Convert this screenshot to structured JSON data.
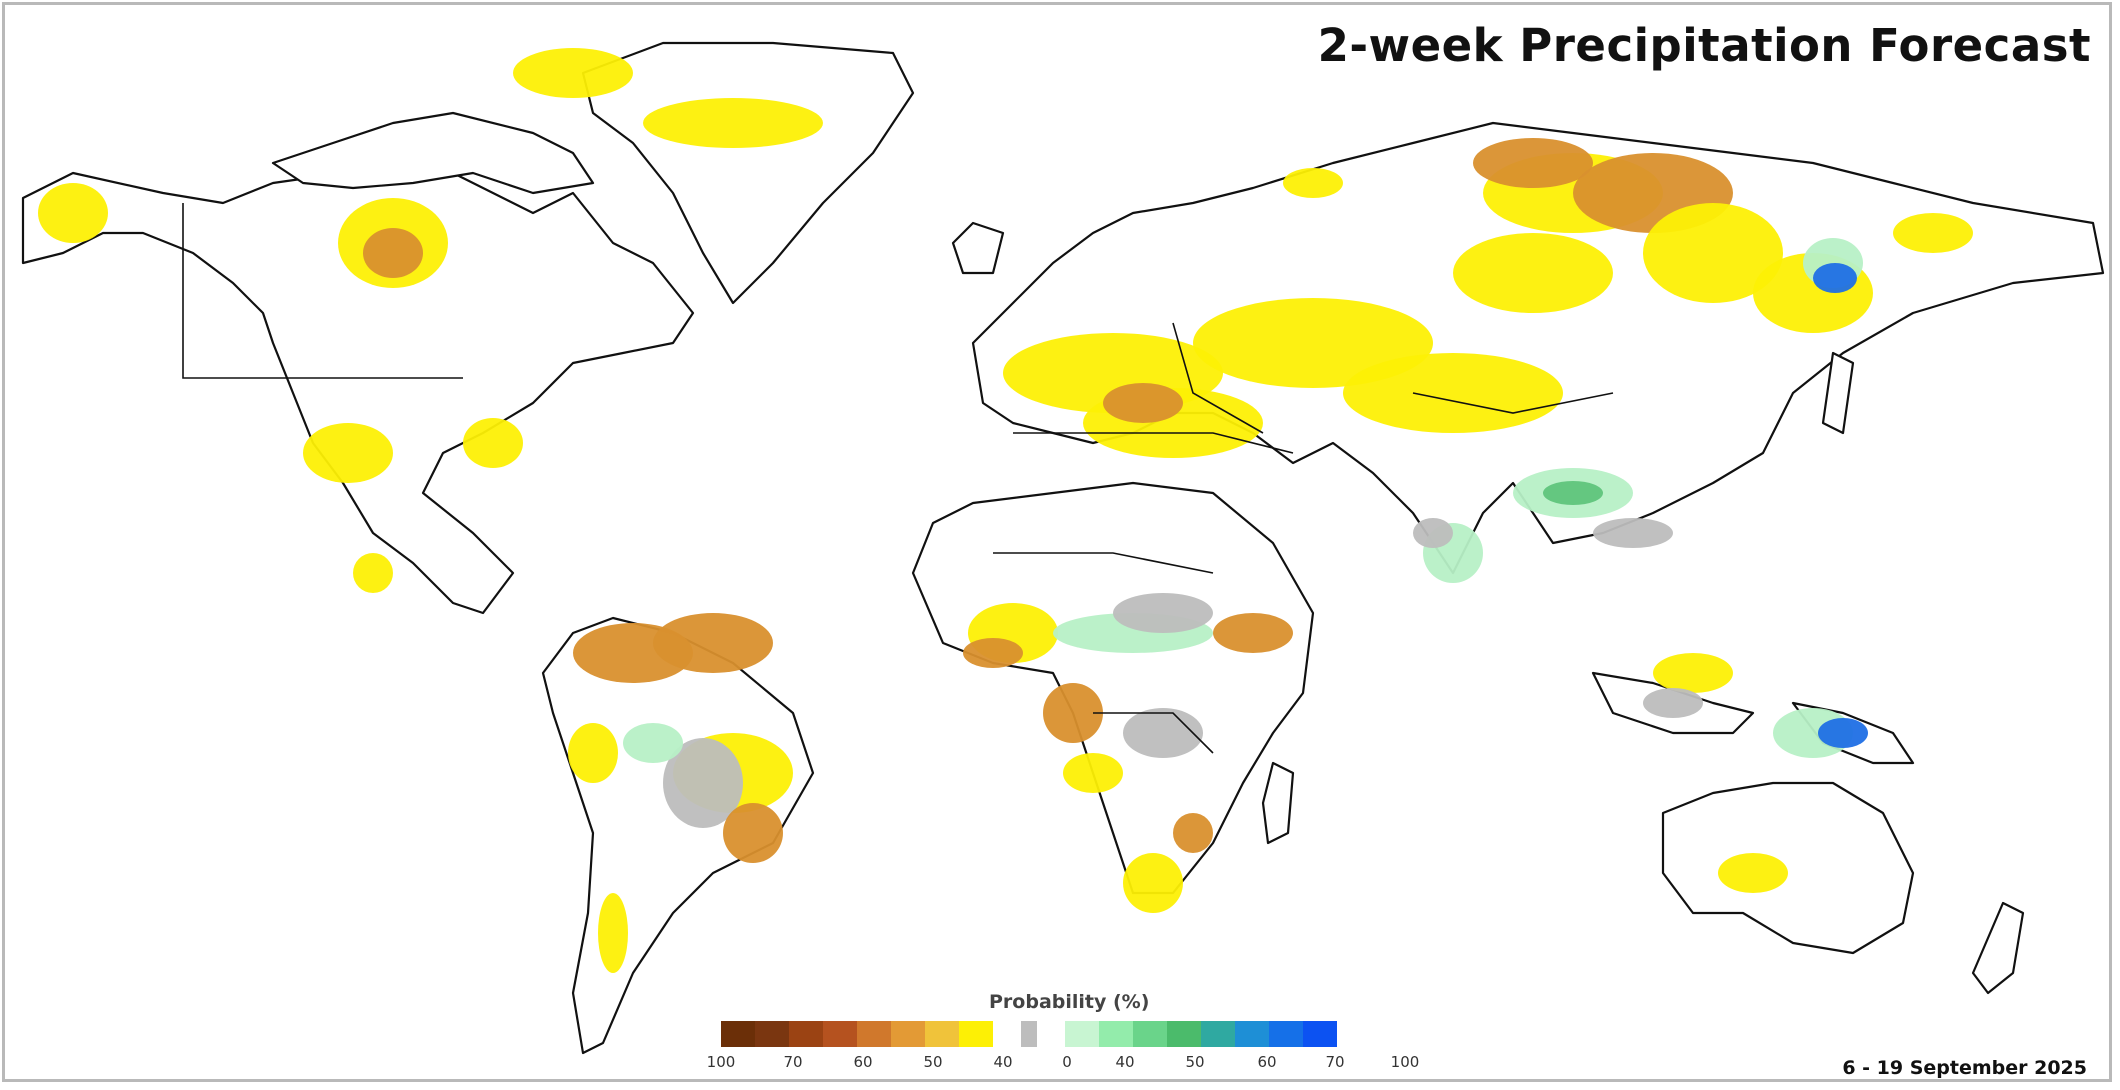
{
  "title": "2-week Precipitation Forecast",
  "date_range": "6 - 19 September 2025",
  "legend": {
    "title": "Probability (%)",
    "dry_colors": [
      "#6b2f08",
      "#7a3610",
      "#9b4313",
      "#b5521f",
      "#d0782c",
      "#e39a35",
      "#f0c33a",
      "#fdf005"
    ],
    "neutral_color": "#bdbdbd",
    "wet_colors": [
      "#c8f5d2",
      "#93ecab",
      "#6ad48a",
      "#4bbb6b",
      "#2fa9a1",
      "#1e8fd6",
      "#1570e8",
      "#0c52f2"
    ],
    "ticks": [
      "100",
      "70",
      "60",
      "50",
      "40",
      "0",
      "40",
      "50",
      "60",
      "70",
      "100"
    ]
  },
  "map_colors": {
    "coast": "#111111",
    "land": "#ffffff",
    "below_normal": "#fdf005",
    "below_normal_strong": "#d9902e",
    "near_normal": "#bdbdbd",
    "above_normal": "#b7f0c6",
    "above_normal_strong": "#5fc47c",
    "above_normal_very_strong": "#1f6fe5"
  }
}
